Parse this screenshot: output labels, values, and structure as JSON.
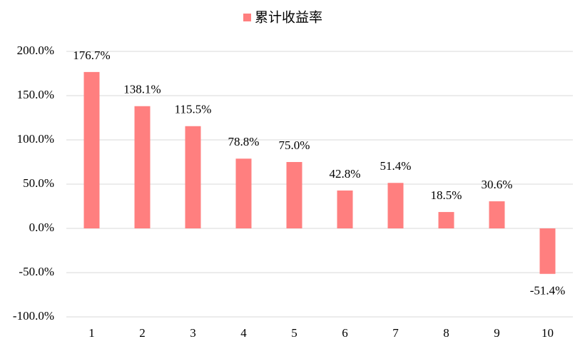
{
  "chart_data": {
    "type": "bar",
    "categories": [
      "1",
      "2",
      "3",
      "4",
      "5",
      "6",
      "7",
      "8",
      "9",
      "10"
    ],
    "series": [
      {
        "name": "累计收益率",
        "color": "#ff7f7f",
        "values": [
          176.7,
          138.1,
          115.5,
          78.8,
          75.0,
          42.8,
          51.4,
          18.5,
          30.6,
          -51.4
        ],
        "value_labels": [
          "176.7%",
          "138.1%",
          "115.5%",
          "78.8%",
          "75.0%",
          "42.8%",
          "51.4%",
          "18.5%",
          "30.6%",
          "-51.4%"
        ]
      }
    ],
    "ylim": [
      -100,
      200
    ],
    "yticks": [
      {
        "value": -100,
        "label": "-100.0%"
      },
      {
        "value": -50,
        "label": "-50.0%"
      },
      {
        "value": 0,
        "label": "0.0%"
      },
      {
        "value": 50,
        "label": "50.0%"
      },
      {
        "value": 100,
        "label": "100.0%"
      },
      {
        "value": 150,
        "label": "150.0%"
      },
      {
        "value": 200,
        "label": "200.0%"
      }
    ],
    "grid": true,
    "legend": "top"
  }
}
